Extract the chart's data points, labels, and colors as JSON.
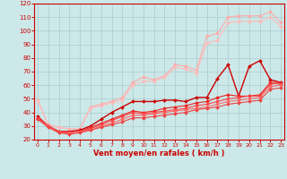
{
  "xlabel": "Vent moyen/en rafales ( km/h )",
  "bg_color": "#cce8e8",
  "grid_color": "#aacccc",
  "x_min": 0,
  "x_max": 23,
  "y_min": 20,
  "y_max": 120,
  "series": [
    {
      "x": [
        0,
        1,
        2,
        3,
        4,
        5,
        6,
        7,
        8,
        9,
        10,
        11,
        12,
        13,
        14,
        15,
        16,
        17,
        18,
        19,
        20,
        21,
        22,
        23
      ],
      "y": [
        49,
        31,
        29,
        28,
        28,
        44,
        46,
        48,
        51,
        62,
        66,
        64,
        67,
        75,
        74,
        71,
        96,
        98,
        110,
        111,
        111,
        111,
        114,
        106
      ],
      "color": "#ffaaaa",
      "lw": 0.8,
      "marker": "D",
      "ms": 2.0
    },
    {
      "x": [
        0,
        1,
        2,
        3,
        4,
        5,
        6,
        7,
        8,
        9,
        10,
        11,
        12,
        13,
        14,
        15,
        16,
        17,
        18,
        19,
        20,
        21,
        22,
        23
      ],
      "y": [
        49,
        31,
        29,
        28,
        28,
        43,
        45,
        47,
        49,
        60,
        63,
        63,
        66,
        73,
        72,
        69,
        91,
        93,
        106,
        107,
        107,
        107,
        110,
        103
      ],
      "color": "#ffbbbb",
      "lw": 0.8,
      "marker": "D",
      "ms": 2.0
    },
    {
      "x": [
        0,
        1,
        2,
        3,
        4,
        5,
        6,
        7,
        8,
        9,
        10,
        11,
        12,
        13,
        14,
        15,
        16,
        17,
        18,
        19,
        20,
        21,
        22,
        23
      ],
      "y": [
        37,
        30,
        26,
        26,
        27,
        30,
        35,
        40,
        44,
        48,
        48,
        48,
        49,
        49,
        48,
        51,
        51,
        65,
        75,
        52,
        74,
        78,
        64,
        62
      ],
      "color": "#cc0000",
      "lw": 1.0,
      "marker": "D",
      "ms": 2.0
    },
    {
      "x": [
        0,
        1,
        2,
        3,
        4,
        5,
        6,
        7,
        8,
        9,
        10,
        11,
        12,
        13,
        14,
        15,
        16,
        17,
        18,
        19,
        20,
        21,
        22,
        23
      ],
      "y": [
        36,
        30,
        26,
        25,
        26,
        29,
        32,
        35,
        38,
        41,
        40,
        41,
        43,
        44,
        45,
        47,
        48,
        51,
        53,
        52,
        52,
        53,
        62,
        62
      ],
      "color": "#ee2222",
      "lw": 0.8,
      "marker": "D",
      "ms": 2.0
    },
    {
      "x": [
        0,
        1,
        2,
        3,
        4,
        5,
        6,
        7,
        8,
        9,
        10,
        11,
        12,
        13,
        14,
        15,
        16,
        17,
        18,
        19,
        20,
        21,
        22,
        23
      ],
      "y": [
        36,
        30,
        26,
        25,
        26,
        28,
        31,
        34,
        37,
        40,
        39,
        40,
        41,
        42,
        43,
        45,
        46,
        48,
        50,
        51,
        52,
        52,
        61,
        61
      ],
      "color": "#ff4444",
      "lw": 0.8,
      "marker": "D",
      "ms": 2.0
    },
    {
      "x": [
        0,
        1,
        2,
        3,
        4,
        5,
        6,
        7,
        8,
        9,
        10,
        11,
        12,
        13,
        14,
        15,
        16,
        17,
        18,
        19,
        20,
        21,
        22,
        23
      ],
      "y": [
        35,
        30,
        25,
        25,
        26,
        27,
        30,
        32,
        35,
        38,
        38,
        39,
        40,
        41,
        42,
        43,
        44,
        46,
        48,
        49,
        50,
        51,
        59,
        60
      ],
      "color": "#ff6666",
      "lw": 0.8,
      "marker": "D",
      "ms": 2.0
    },
    {
      "x": [
        0,
        1,
        2,
        3,
        4,
        5,
        6,
        7,
        8,
        9,
        10,
        11,
        12,
        13,
        14,
        15,
        16,
        17,
        18,
        19,
        20,
        21,
        22,
        23
      ],
      "y": [
        35,
        29,
        25,
        24,
        25,
        27,
        29,
        31,
        33,
        36,
        36,
        37,
        38,
        39,
        40,
        42,
        43,
        44,
        46,
        47,
        48,
        49,
        57,
        58
      ],
      "color": "#ee4444",
      "lw": 0.8,
      "marker": "D",
      "ms": 2.0
    }
  ],
  "x_ticks": [
    0,
    1,
    2,
    3,
    4,
    5,
    6,
    7,
    8,
    9,
    10,
    11,
    12,
    13,
    14,
    15,
    16,
    17,
    18,
    19,
    20,
    21,
    22,
    23
  ],
  "y_ticks": [
    20,
    30,
    40,
    50,
    60,
    70,
    80,
    90,
    100,
    110,
    120
  ],
  "tick_color": "#cc0000",
  "label_color": "#cc0000",
  "axis_color": "#cc0000"
}
